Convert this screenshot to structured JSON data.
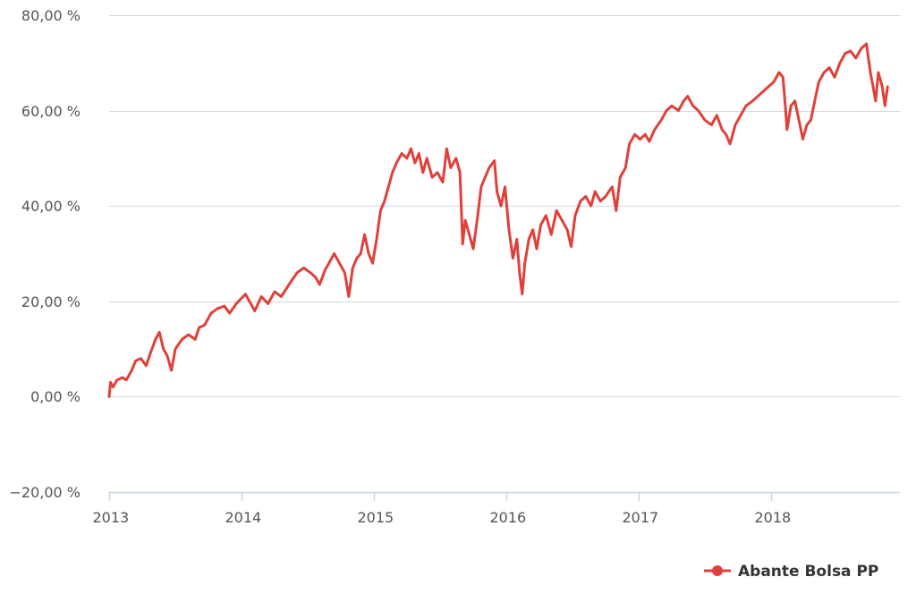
{
  "chart_data": {
    "type": "line",
    "title": "",
    "xlabel": "",
    "ylabel": "",
    "ylim": [
      -20,
      80
    ],
    "xlim": [
      2013.0,
      2018.9
    ],
    "y_ticks": [
      {
        "value": 80,
        "label": "80,00 %"
      },
      {
        "value": 60,
        "label": "60,00 %"
      },
      {
        "value": 40,
        "label": "40,00 %"
      },
      {
        "value": 20,
        "label": "20,00 %"
      },
      {
        "value": 0,
        "label": "0,00 %"
      },
      {
        "value": -20,
        "label": "−20,00 %"
      }
    ],
    "x_ticks": [
      {
        "value": 2013,
        "label": "2013"
      },
      {
        "value": 2014,
        "label": "2014"
      },
      {
        "value": 2015,
        "label": "2015"
      },
      {
        "value": 2016,
        "label": "2016"
      },
      {
        "value": 2017,
        "label": "2017"
      },
      {
        "value": 2018,
        "label": "2018"
      }
    ],
    "grid": "horizontal",
    "legend_position": "bottom-right",
    "colors": {
      "series": "#e0403a",
      "grid": "#cfd6e0",
      "axis": "#c8d4e6",
      "text": "#555555"
    },
    "series": [
      {
        "name": "Abante Bolsa PP",
        "points": [
          [
            2013.0,
            0.0
          ],
          [
            2013.01,
            3.0
          ],
          [
            2013.03,
            2.0
          ],
          [
            2013.06,
            3.5
          ],
          [
            2013.1,
            4.0
          ],
          [
            2013.13,
            3.5
          ],
          [
            2013.17,
            5.5
          ],
          [
            2013.2,
            7.5
          ],
          [
            2013.24,
            8.0
          ],
          [
            2013.28,
            6.5
          ],
          [
            2013.31,
            9.0
          ],
          [
            2013.35,
            12.0
          ],
          [
            2013.38,
            13.5
          ],
          [
            2013.41,
            10.0
          ],
          [
            2013.44,
            8.5
          ],
          [
            2013.47,
            5.5
          ],
          [
            2013.5,
            10.0
          ],
          [
            2013.55,
            12.0
          ],
          [
            2013.6,
            13.0
          ],
          [
            2013.65,
            12.0
          ],
          [
            2013.68,
            14.5
          ],
          [
            2013.72,
            15.0
          ],
          [
            2013.77,
            17.5
          ],
          [
            2013.82,
            18.5
          ],
          [
            2013.87,
            19.0
          ],
          [
            2013.91,
            17.5
          ],
          [
            2013.96,
            19.5
          ],
          [
            2014.03,
            21.5
          ],
          [
            2014.07,
            19.5
          ],
          [
            2014.1,
            18.0
          ],
          [
            2014.15,
            21.0
          ],
          [
            2014.2,
            19.5
          ],
          [
            2014.25,
            22.0
          ],
          [
            2014.3,
            21.0
          ],
          [
            2014.37,
            24.0
          ],
          [
            2014.42,
            26.0
          ],
          [
            2014.47,
            27.0
          ],
          [
            2014.52,
            26.0
          ],
          [
            2014.56,
            25.0
          ],
          [
            2014.59,
            23.5
          ],
          [
            2014.63,
            26.5
          ],
          [
            2014.66,
            28.0
          ],
          [
            2014.7,
            30.0
          ],
          [
            2014.74,
            28.0
          ],
          [
            2014.78,
            26.0
          ],
          [
            2014.81,
            21.0
          ],
          [
            2014.84,
            27.0
          ],
          [
            2014.87,
            29.0
          ],
          [
            2014.9,
            30.0
          ],
          [
            2014.93,
            34.0
          ],
          [
            2014.96,
            30.0
          ],
          [
            2014.99,
            28.0
          ],
          [
            2015.02,
            33.0
          ],
          [
            2015.05,
            39.0
          ],
          [
            2015.08,
            41.0
          ],
          [
            2015.11,
            44.0
          ],
          [
            2015.14,
            47.0
          ],
          [
            2015.17,
            49.0
          ],
          [
            2015.21,
            51.0
          ],
          [
            2015.25,
            50.0
          ],
          [
            2015.28,
            52.0
          ],
          [
            2015.31,
            49.0
          ],
          [
            2015.34,
            51.0
          ],
          [
            2015.37,
            47.0
          ],
          [
            2015.4,
            50.0
          ],
          [
            2015.44,
            46.0
          ],
          [
            2015.48,
            47.0
          ],
          [
            2015.52,
            45.0
          ],
          [
            2015.55,
            52.0
          ],
          [
            2015.58,
            48.0
          ],
          [
            2015.62,
            50.0
          ],
          [
            2015.65,
            47.0
          ],
          [
            2015.67,
            32.0
          ],
          [
            2015.69,
            37.0
          ],
          [
            2015.72,
            34.0
          ],
          [
            2015.75,
            31.0
          ],
          [
            2015.78,
            37.0
          ],
          [
            2015.81,
            44.0
          ],
          [
            2015.84,
            46.0
          ],
          [
            2015.87,
            48.0
          ],
          [
            2015.91,
            49.5
          ],
          [
            2015.93,
            43.0
          ],
          [
            2015.96,
            40.0
          ],
          [
            2015.99,
            44.0
          ],
          [
            2016.02,
            35.0
          ],
          [
            2016.05,
            29.0
          ],
          [
            2016.08,
            33.0
          ],
          [
            2016.1,
            26.0
          ],
          [
            2016.12,
            21.5
          ],
          [
            2016.14,
            28.0
          ],
          [
            2016.17,
            33.0
          ],
          [
            2016.2,
            35.0
          ],
          [
            2016.23,
            31.0
          ],
          [
            2016.26,
            36.0
          ],
          [
            2016.3,
            38.0
          ],
          [
            2016.34,
            34.0
          ],
          [
            2016.38,
            39.0
          ],
          [
            2016.42,
            37.0
          ],
          [
            2016.46,
            35.0
          ],
          [
            2016.49,
            31.5
          ],
          [
            2016.52,
            38.0
          ],
          [
            2016.56,
            41.0
          ],
          [
            2016.6,
            42.0
          ],
          [
            2016.64,
            40.0
          ],
          [
            2016.67,
            43.0
          ],
          [
            2016.71,
            41.0
          ],
          [
            2016.75,
            42.0
          ],
          [
            2016.8,
            44.0
          ],
          [
            2016.83,
            39.0
          ],
          [
            2016.86,
            46.0
          ],
          [
            2016.9,
            48.0
          ],
          [
            2016.93,
            53.0
          ],
          [
            2016.97,
            55.0
          ],
          [
            2017.01,
            54.0
          ],
          [
            2017.05,
            55.0
          ],
          [
            2017.08,
            53.5
          ],
          [
            2017.12,
            56.0
          ],
          [
            2017.17,
            58.0
          ],
          [
            2017.21,
            60.0
          ],
          [
            2017.25,
            61.0
          ],
          [
            2017.3,
            60.0
          ],
          [
            2017.34,
            62.0
          ],
          [
            2017.37,
            63.0
          ],
          [
            2017.41,
            61.0
          ],
          [
            2017.45,
            60.0
          ],
          [
            2017.5,
            58.0
          ],
          [
            2017.55,
            57.0
          ],
          [
            2017.59,
            59.0
          ],
          [
            2017.63,
            56.0
          ],
          [
            2017.66,
            55.0
          ],
          [
            2017.69,
            53.0
          ],
          [
            2017.73,
            57.0
          ],
          [
            2017.77,
            59.0
          ],
          [
            2017.81,
            61.0
          ],
          [
            2017.86,
            62.0
          ],
          [
            2017.9,
            63.0
          ],
          [
            2017.94,
            64.0
          ],
          [
            2017.98,
            65.0
          ],
          [
            2018.02,
            66.0
          ],
          [
            2018.06,
            68.0
          ],
          [
            2018.09,
            67.0
          ],
          [
            2018.11,
            60.0
          ],
          [
            2018.12,
            56.0
          ],
          [
            2018.15,
            61.0
          ],
          [
            2018.18,
            62.0
          ],
          [
            2018.21,
            58.0
          ],
          [
            2018.24,
            54.0
          ],
          [
            2018.27,
            57.0
          ],
          [
            2018.3,
            58.0
          ],
          [
            2018.33,
            62.0
          ],
          [
            2018.36,
            66.0
          ],
          [
            2018.4,
            68.0
          ],
          [
            2018.44,
            69.0
          ],
          [
            2018.48,
            67.0
          ],
          [
            2018.52,
            70.0
          ],
          [
            2018.56,
            72.0
          ],
          [
            2018.6,
            72.5
          ],
          [
            2018.64,
            71.0
          ],
          [
            2018.68,
            73.0
          ],
          [
            2018.72,
            74.0
          ],
          [
            2018.75,
            68.0
          ],
          [
            2018.77,
            65.0
          ],
          [
            2018.79,
            62.0
          ],
          [
            2018.81,
            68.0
          ],
          [
            2018.84,
            65.0
          ],
          [
            2018.86,
            61.0
          ],
          [
            2018.88,
            65.0
          ]
        ]
      }
    ]
  }
}
